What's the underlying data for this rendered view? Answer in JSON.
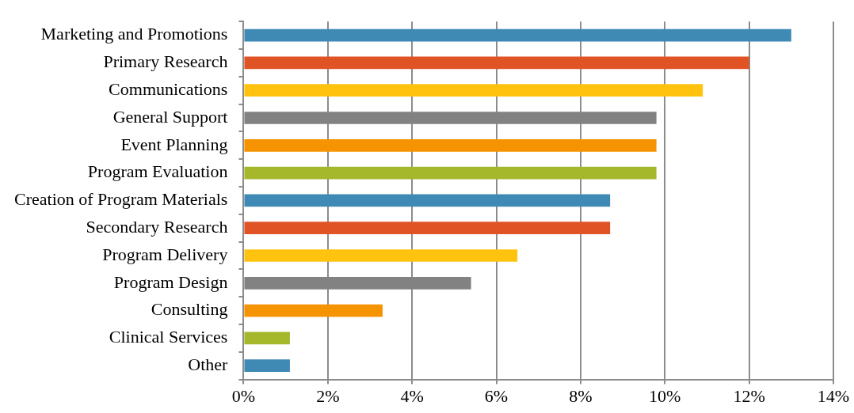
{
  "chart_data": {
    "type": "bar",
    "orientation": "horizontal",
    "categories": [
      "Marketing and Promotions",
      "Primary Research",
      "Communications",
      "General Support",
      "Event Planning",
      "Program Evaluation",
      "Creation of Program Materials",
      "Secondary Research",
      "Program Delivery",
      "Program Design",
      "Consulting",
      "Clinical Services",
      "Other"
    ],
    "values": [
      13.0,
      12.0,
      10.9,
      9.8,
      9.8,
      9.8,
      8.7,
      8.7,
      6.5,
      5.4,
      3.3,
      1.1,
      1.1
    ],
    "colors": [
      "#3f89b5",
      "#e05325",
      "#ffc20e",
      "#828282",
      "#f59300",
      "#a5b72a",
      "#3f89b5",
      "#e05325",
      "#ffc20e",
      "#828282",
      "#f59300",
      "#a5b72a",
      "#3f89b5"
    ],
    "xlim": [
      0,
      14
    ],
    "xticks": [
      {
        "value": 0,
        "label": "0%"
      },
      {
        "value": 2,
        "label": "2%"
      },
      {
        "value": 4,
        "label": "4%"
      },
      {
        "value": 6,
        "label": "6%"
      },
      {
        "value": 8,
        "label": "8%"
      },
      {
        "value": 10,
        "label": "10%"
      },
      {
        "value": 12,
        "label": "12%"
      },
      {
        "value": 14,
        "label": "14%"
      }
    ],
    "grid": "x",
    "legend": false
  }
}
